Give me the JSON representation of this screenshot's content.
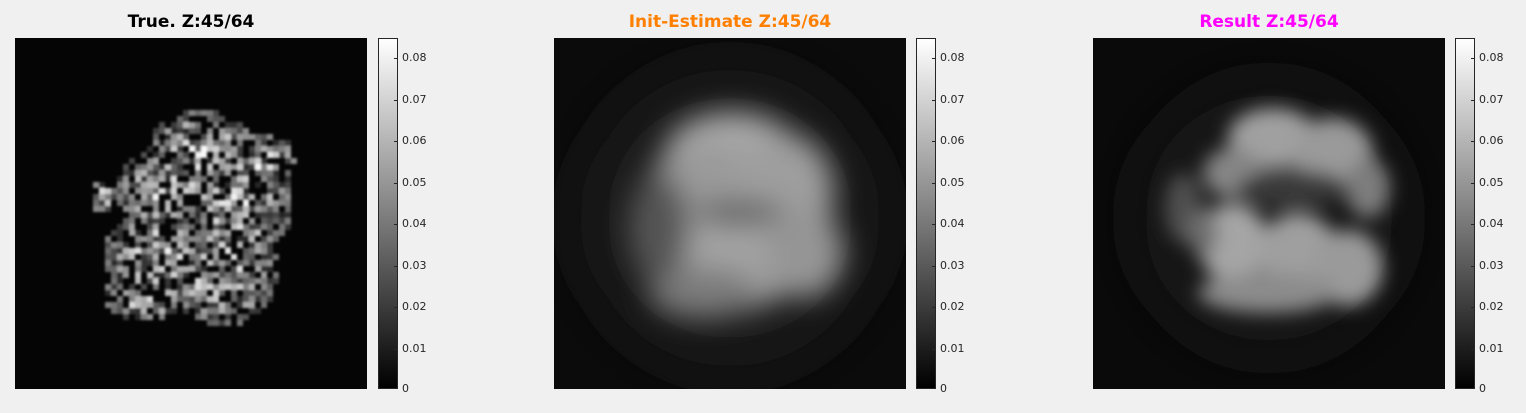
{
  "panels": [
    {
      "title": "True. Z:45/64",
      "title_color": "#000000",
      "image_kind": "true-speckled-blob"
    },
    {
      "title": "Init-Estimate Z:45/64",
      "title_color": "#ff7f00",
      "image_kind": "blurred-blob"
    },
    {
      "title": "Result Z:45/64",
      "title_color": "#ff00ff",
      "image_kind": "reconstructed-blob"
    }
  ],
  "colorbar": {
    "ticks": [
      "0.08",
      "0.07",
      "0.06",
      "0.05",
      "0.04",
      "0.03",
      "0.02",
      "0.01",
      "0"
    ],
    "colormap": "gray"
  }
}
